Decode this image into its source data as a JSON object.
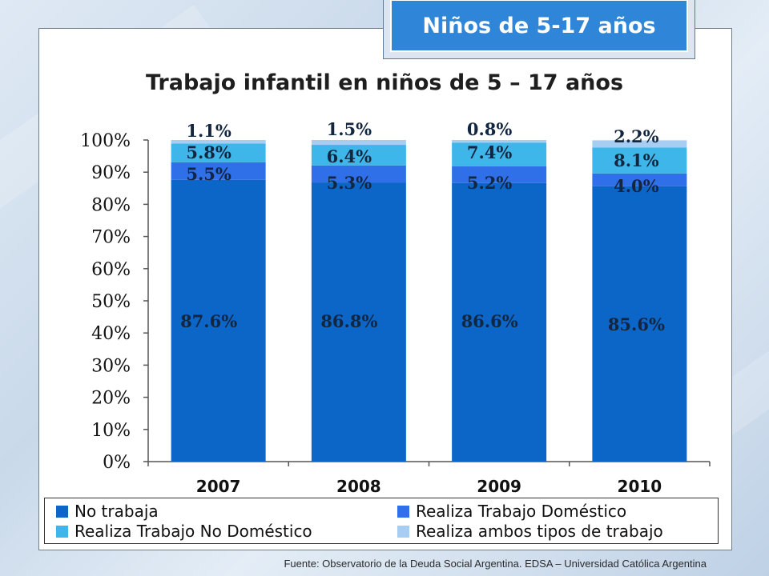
{
  "badge": {
    "label": "Niños de 5-17 años"
  },
  "source": "Fuente: Observatorio de la Deuda Social Argentina. EDSA – Universidad Católica Argentina",
  "chart_data": {
    "type": "bar",
    "stacked": true,
    "title": "Trabajo infantil en niños de 5 – 17 años",
    "xlabel": "",
    "ylabel": "",
    "ylim": [
      0,
      100
    ],
    "ytick_labels": [
      "0%",
      "10%",
      "20%",
      "30%",
      "40%",
      "50%",
      "60%",
      "70%",
      "80%",
      "90%",
      "100%"
    ],
    "categories": [
      "2007",
      "2008",
      "2009",
      "2010"
    ],
    "series": [
      {
        "name": "No trabaja",
        "values": [
          87.6,
          86.8,
          86.6,
          85.6
        ],
        "labels": [
          "87.6%",
          "86.8%",
          "86.6%",
          "85.6%"
        ],
        "color": "#0b66c8"
      },
      {
        "name": "Realiza Trabajo Doméstico",
        "values": [
          5.5,
          5.3,
          5.2,
          4.0
        ],
        "labels": [
          "5.5%",
          "5.3%",
          "5.2%",
          "4.0%"
        ],
        "color": "#2f6fe8"
      },
      {
        "name": "Realiza Trabajo No Doméstico",
        "values": [
          5.8,
          6.4,
          7.4,
          8.1
        ],
        "labels": [
          "5.8%",
          "6.4%",
          "7.4%",
          "8.1%"
        ],
        "color": "#3eb6ea"
      },
      {
        "name": "Realiza ambos tipos de trabajo",
        "values": [
          1.1,
          1.5,
          0.8,
          2.2
        ],
        "labels": [
          "1.1%",
          "1.5%",
          "0.8%",
          "2.2%"
        ],
        "color": "#a7cdf2"
      }
    ],
    "grid": false,
    "legend_position": "bottom"
  }
}
